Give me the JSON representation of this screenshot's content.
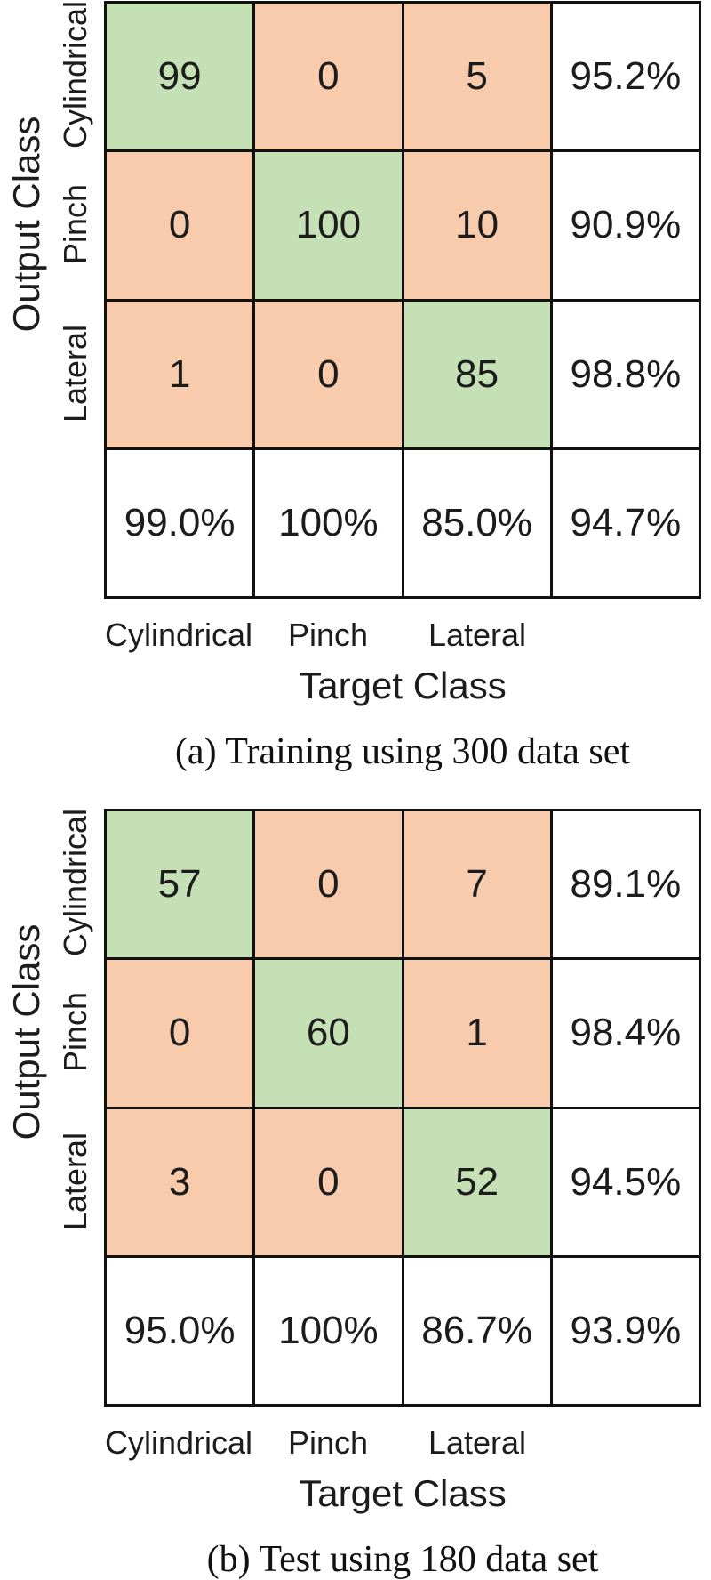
{
  "colors": {
    "diagonal_green": "#c5e0b4",
    "off_diagonal_orange": "#f8cbad",
    "summary_white": "#ffffff",
    "border_black": "#111111"
  },
  "chart_data": [
    {
      "type": "heatmap",
      "title": "(a) Training using 300 data set",
      "xlabel": "Target Class",
      "ylabel": "Output Class",
      "x_categories": [
        "Cylindrical",
        "Pinch",
        "Lateral"
      ],
      "y_categories": [
        "Cylindrical",
        "Pinch",
        "Lateral"
      ],
      "matrix": [
        [
          99,
          0,
          5
        ],
        [
          0,
          100,
          10
        ],
        [
          1,
          0,
          85
        ]
      ],
      "row_percent": [
        "95.2%",
        "90.9%",
        "98.8%"
      ],
      "col_percent": [
        "99.0%",
        "100%",
        "85.0%"
      ],
      "overall_percent": "94.7%",
      "legend": "diagonal cells green (correct), off-diagonal orange (errors), summary row/column white"
    },
    {
      "type": "heatmap",
      "title": "(b) Test using 180 data set",
      "xlabel": "Target Class",
      "ylabel": "Output Class",
      "x_categories": [
        "Cylindrical",
        "Pinch",
        "Lateral"
      ],
      "y_categories": [
        "Cylindrical",
        "Pinch",
        "Lateral"
      ],
      "matrix": [
        [
          57,
          0,
          7
        ],
        [
          0,
          60,
          1
        ],
        [
          3,
          0,
          52
        ]
      ],
      "row_percent": [
        "89.1%",
        "98.4%",
        "94.5%"
      ],
      "col_percent": [
        "95.0%",
        "100%",
        "86.7%"
      ],
      "overall_percent": "93.9%",
      "legend": "diagonal cells green (correct), off-diagonal orange (errors), summary row/column white"
    }
  ]
}
